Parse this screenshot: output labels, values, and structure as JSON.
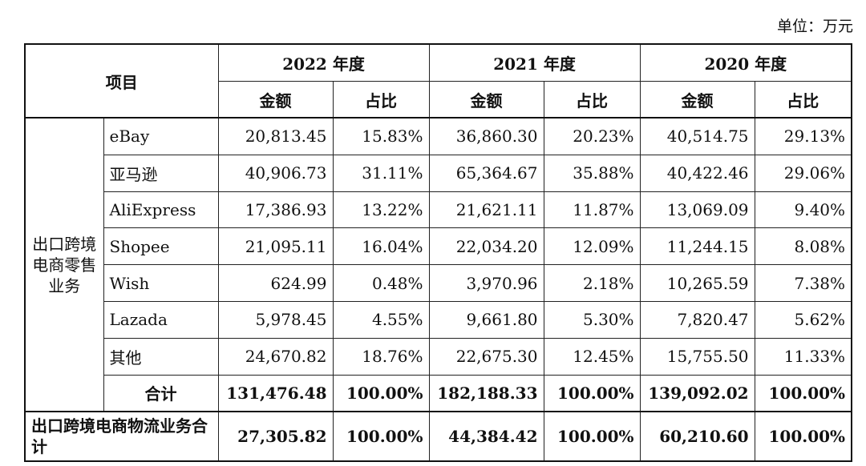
{
  "unit": "单位：万元",
  "header": {
    "item": "项目",
    "years": [
      "2022 年度",
      "2021 年度",
      "2020 年度"
    ],
    "amount": "金额",
    "ratio": "占比"
  },
  "category": "出口跨境电商零售业务",
  "rows": [
    {
      "name": "eBay",
      "v": [
        "20,813.45",
        "15.83%",
        "36,860.30",
        "20.23%",
        "40,514.75",
        "29.13%"
      ]
    },
    {
      "name": "亚马逊",
      "v": [
        "40,906.73",
        "31.11%",
        "65,364.67",
        "35.88%",
        "40,422.46",
        "29.06%"
      ]
    },
    {
      "name": "AliExpress",
      "v": [
        "17,386.93",
        "13.22%",
        "21,621.11",
        "11.87%",
        "13,069.09",
        "9.40%"
      ]
    },
    {
      "name": "Shopee",
      "v": [
        "21,095.11",
        "16.04%",
        "22,034.20",
        "12.09%",
        "11,244.15",
        "8.08%"
      ]
    },
    {
      "name": "Wish",
      "v": [
        "624.99",
        "0.48%",
        "3,970.96",
        "2.18%",
        "10,265.59",
        "7.38%"
      ]
    },
    {
      "name": "Lazada",
      "v": [
        "5,978.45",
        "4.55%",
        "9,661.80",
        "5.30%",
        "7,820.47",
        "5.62%"
      ]
    },
    {
      "name": "其他",
      "v": [
        "24,670.82",
        "18.76%",
        "22,675.30",
        "12.45%",
        "15,755.50",
        "11.33%"
      ]
    }
  ],
  "subtotal": {
    "name": "合计",
    "v": [
      "131,476.48",
      "100.00%",
      "182,188.33",
      "100.00%",
      "139,092.02",
      "100.00%"
    ]
  },
  "total": {
    "name": "出口跨境电商物流业务合计",
    "v": [
      "27,305.82",
      "100.00%",
      "44,384.42",
      "100.00%",
      "60,210.60",
      "100.00%"
    ]
  }
}
